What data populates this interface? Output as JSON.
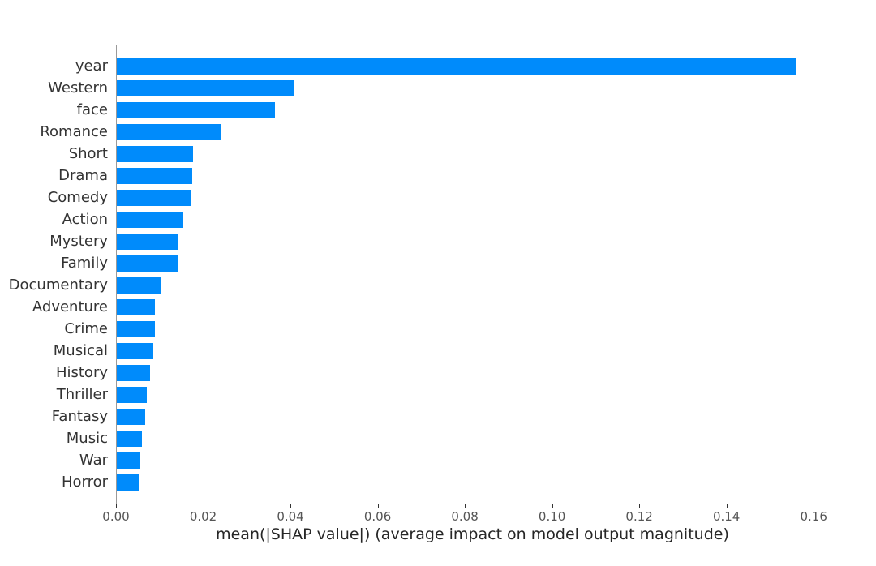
{
  "chart_data": {
    "type": "bar",
    "orientation": "horizontal",
    "title": "",
    "xlabel": "mean(|SHAP value|) (average impact on model output magnitude)",
    "ylabel": "",
    "categories": [
      "year",
      "Western",
      "face",
      "Romance",
      "Short",
      "Drama",
      "Comedy",
      "Action",
      "Mystery",
      "Family",
      "Documentary",
      "Adventure",
      "Crime",
      "Musical",
      "History",
      "Thriller",
      "Fantasy",
      "Music",
      "War",
      "Horror"
    ],
    "values": [
      0.1557,
      0.0406,
      0.0362,
      0.0239,
      0.0175,
      0.0173,
      0.0169,
      0.0152,
      0.0142,
      0.0139,
      0.01,
      0.0088,
      0.0087,
      0.0084,
      0.0076,
      0.0068,
      0.0066,
      0.0058,
      0.0053,
      0.005
    ],
    "xtick_labels": [
      "0.00",
      "0.02",
      "0.04",
      "0.06",
      "0.08",
      "0.10",
      "0.12",
      "0.14",
      "0.16"
    ],
    "xtick_values": [
      0.0,
      0.02,
      0.04,
      0.06,
      0.08,
      0.1,
      0.12,
      0.14,
      0.16
    ],
    "xlim": [
      0,
      0.1635
    ],
    "grid": false,
    "legend": "none",
    "bar_color": "#008bfb",
    "zero_line_color": "#9a9a9a",
    "axis_line_color": "#333333",
    "tick_label_color": "#555555",
    "category_label_color": "#333333",
    "xlabel_color": "#262626"
  }
}
